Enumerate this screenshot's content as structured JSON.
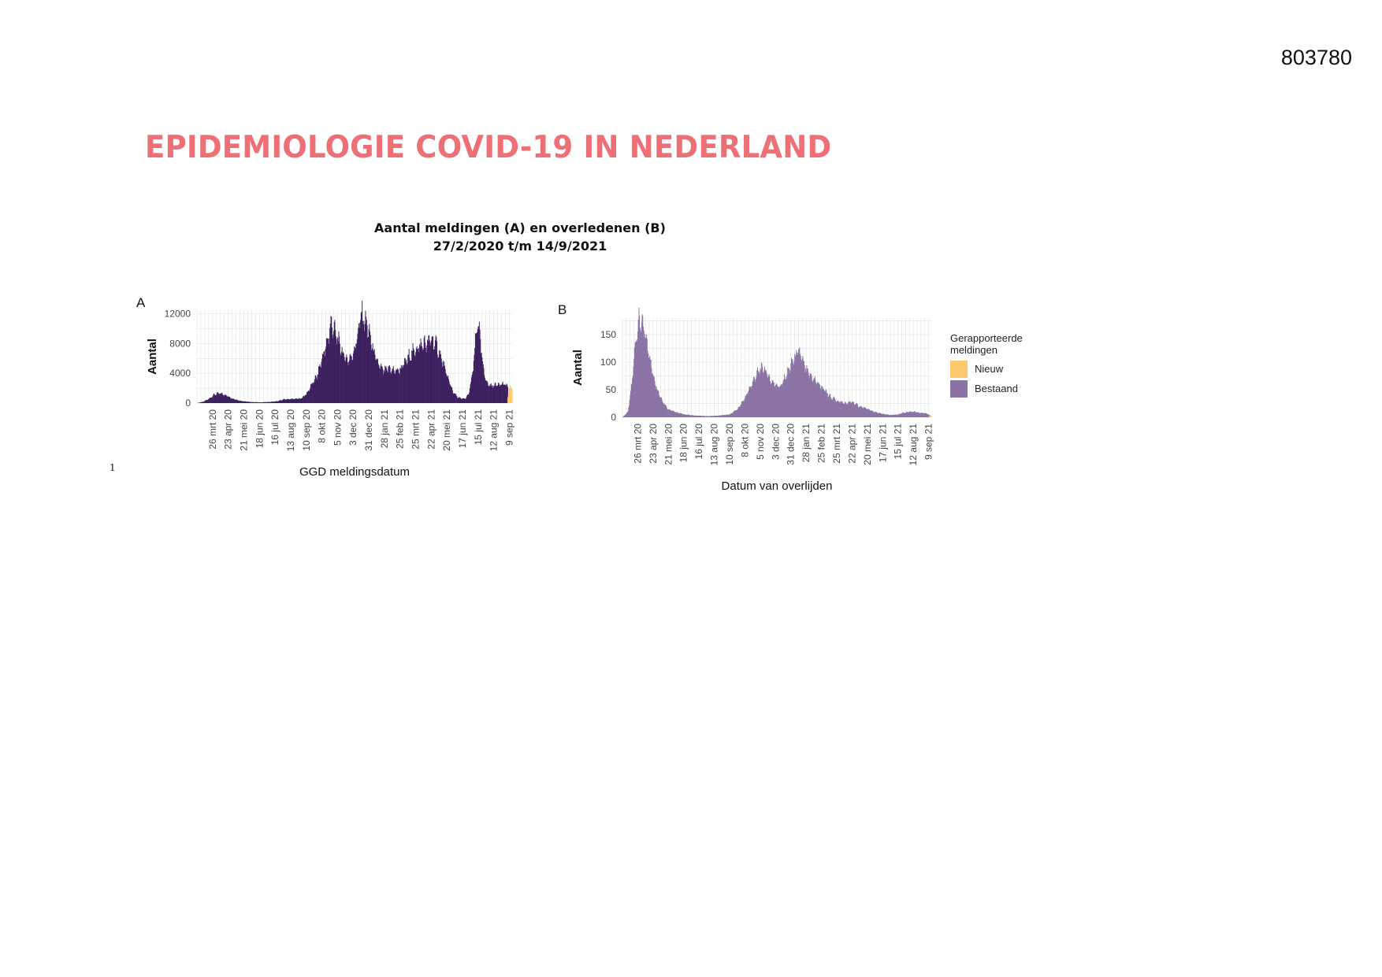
{
  "document": {
    "id": "803780",
    "title": "EPIDEMIOLOGIE COVID-19 IN NEDERLAND",
    "figure_title_line1": "Aantal meldingen (A) en overledenen (B)",
    "figure_title_line2": "27/2/2020 t/m 14/9/2021",
    "footnote": "1"
  },
  "colors": {
    "bestaand_a": "#3b1f5e",
    "bestaand_b": "#8a72a4",
    "nieuw": "#fcc96e",
    "grid": "#e6e6e6",
    "title": "#ee7077"
  },
  "chart_data": [
    {
      "panel": "A",
      "type": "area",
      "xlabel": "GGD meldingsdatum",
      "ylabel": "Aantal",
      "ylim": [
        0,
        12500
      ],
      "yticks": [
        0,
        4000,
        8000,
        12000
      ],
      "grid": true,
      "x_range": [
        "2020-02-27",
        "2021-09-14"
      ],
      "xtick_labels": [
        "26 mrt 20",
        "23 apr 20",
        "21 mei 20",
        "18 jun 20",
        "16 jul 20",
        "13 aug 20",
        "10 sep 20",
        "8 okt 20",
        "5 nov 20",
        "3 dec 20",
        "31 dec 20",
        "28 jan 21",
        "25 feb 21",
        "25 mrt 21",
        "22 apr 21",
        "20 mei 21",
        "17 jun 21",
        "15 jul 21",
        "12 aug 21",
        "9 sep 21"
      ],
      "xtick_dates": [
        "2020-03-26",
        "2020-04-23",
        "2020-05-21",
        "2020-06-18",
        "2020-07-16",
        "2020-08-13",
        "2020-09-10",
        "2020-10-08",
        "2020-11-05",
        "2020-12-03",
        "2020-12-31",
        "2021-01-28",
        "2021-02-25",
        "2021-03-25",
        "2021-04-22",
        "2021-05-20",
        "2021-06-17",
        "2021-07-15",
        "2021-08-12",
        "2021-09-09"
      ],
      "series": [
        {
          "name": "Bestaand",
          "x": [
            "2020-02-27",
            "2020-03-10",
            "2020-03-20",
            "2020-03-28",
            "2020-04-05",
            "2020-04-12",
            "2020-04-20",
            "2020-05-01",
            "2020-05-15",
            "2020-06-01",
            "2020-06-20",
            "2020-07-05",
            "2020-07-20",
            "2020-08-01",
            "2020-08-15",
            "2020-08-31",
            "2020-09-10",
            "2020-09-20",
            "2020-09-30",
            "2020-10-08",
            "2020-10-15",
            "2020-10-20",
            "2020-10-25",
            "2020-10-31",
            "2020-11-08",
            "2020-11-15",
            "2020-11-22",
            "2020-11-30",
            "2020-12-05",
            "2020-12-12",
            "2020-12-17",
            "2020-12-22",
            "2020-12-28",
            "2021-01-05",
            "2021-01-12",
            "2021-01-20",
            "2021-01-28",
            "2021-02-05",
            "2021-02-15",
            "2021-02-25",
            "2021-03-05",
            "2021-03-15",
            "2021-03-25",
            "2021-04-05",
            "2021-04-15",
            "2021-04-22",
            "2021-05-01",
            "2021-05-10",
            "2021-05-20",
            "2021-05-31",
            "2021-06-08",
            "2021-06-15",
            "2021-06-22",
            "2021-06-28",
            "2021-07-05",
            "2021-07-10",
            "2021-07-14",
            "2021-07-18",
            "2021-07-24",
            "2021-08-01",
            "2021-08-10",
            "2021-08-20",
            "2021-08-31",
            "2021-09-06"
          ],
          "values": [
            0,
            200,
            600,
            1100,
            1300,
            1250,
            1000,
            600,
            300,
            150,
            100,
            150,
            250,
            500,
            550,
            600,
            1200,
            2500,
            3800,
            6000,
            7500,
            9200,
            10800,
            9600,
            8000,
            6500,
            5800,
            6200,
            7200,
            9500,
            12000,
            11300,
            10500,
            8000,
            6000,
            4800,
            4300,
            4700,
            4300,
            4500,
            5300,
            6500,
            7200,
            7800,
            8000,
            8600,
            7800,
            6000,
            3700,
            1500,
            800,
            600,
            600,
            1200,
            4000,
            8000,
            11300,
            9000,
            4500,
            2500,
            2300,
            2600,
            2500,
            2300
          ]
        },
        {
          "name": "Nieuw",
          "x": [
            "2021-09-06",
            "2021-09-10",
            "2021-09-14"
          ],
          "values": [
            800,
            2400,
            1800
          ]
        }
      ]
    },
    {
      "panel": "B",
      "type": "bar",
      "xlabel": "Datum van overlijden",
      "ylabel": "Aantal",
      "ylim": [
        0,
        180
      ],
      "yticks": [
        0,
        50,
        100,
        150
      ],
      "grid": true,
      "x_range": [
        "2020-02-27",
        "2021-09-14"
      ],
      "xtick_labels": [
        "26 mrt 20",
        "23 apr 20",
        "21 mei 20",
        "18 jun 20",
        "16 jul 20",
        "13 aug 20",
        "10 sep 20",
        "8 okt 20",
        "5 nov 20",
        "3 dec 20",
        "31 dec 20",
        "28 jan 21",
        "25 feb 21",
        "25 mrt 21",
        "22 apr 21",
        "20 mei 21",
        "17 jun 21",
        "15 jul 21",
        "12 aug 21",
        "9 sep 21"
      ],
      "xtick_dates": [
        "2020-03-26",
        "2020-04-23",
        "2020-05-21",
        "2020-06-18",
        "2020-07-16",
        "2020-08-13",
        "2020-09-10",
        "2020-10-08",
        "2020-11-05",
        "2020-12-03",
        "2020-12-31",
        "2021-01-28",
        "2021-02-25",
        "2021-03-25",
        "2021-04-22",
        "2021-05-20",
        "2021-06-17",
        "2021-07-15",
        "2021-08-12",
        "2021-09-09"
      ],
      "series": [
        {
          "name": "Bestaand",
          "x": [
            "2020-02-27",
            "2020-03-08",
            "2020-03-15",
            "2020-03-22",
            "2020-03-28",
            "2020-04-02",
            "2020-04-08",
            "2020-04-15",
            "2020-04-22",
            "2020-05-01",
            "2020-05-10",
            "2020-05-20",
            "2020-06-01",
            "2020-06-20",
            "2020-07-10",
            "2020-08-01",
            "2020-08-20",
            "2020-09-10",
            "2020-09-25",
            "2020-10-08",
            "2020-10-18",
            "2020-10-28",
            "2020-11-03",
            "2020-11-10",
            "2020-11-17",
            "2020-11-25",
            "2020-12-03",
            "2020-12-12",
            "2020-12-22",
            "2020-12-31",
            "2021-01-08",
            "2021-01-15",
            "2021-01-22",
            "2021-01-28",
            "2021-02-05",
            "2021-02-15",
            "2021-02-25",
            "2021-03-10",
            "2021-03-25",
            "2021-04-10",
            "2021-04-22",
            "2021-05-05",
            "2021-05-20",
            "2021-06-01",
            "2021-06-17",
            "2021-07-01",
            "2021-07-15",
            "2021-07-25",
            "2021-08-05",
            "2021-08-15",
            "2021-08-25",
            "2021-09-05",
            "2021-09-12"
          ],
          "values": [
            0,
            10,
            60,
            140,
            175,
            170,
            150,
            120,
            80,
            50,
            30,
            15,
            10,
            5,
            3,
            2,
            3,
            5,
            15,
            35,
            55,
            75,
            85,
            90,
            80,
            65,
            60,
            55,
            75,
            95,
            110,
            120,
            100,
            85,
            75,
            65,
            55,
            40,
            30,
            25,
            28,
            20,
            15,
            10,
            6,
            4,
            5,
            8,
            10,
            10,
            8,
            7,
            3
          ]
        },
        {
          "name": "Nieuw",
          "x": [
            "2021-09-10",
            "2021-09-14"
          ],
          "values": [
            2,
            3
          ]
        }
      ],
      "legend": {
        "title_line1": "Gerapporteerde",
        "title_line2": "meldingen",
        "items": [
          "Nieuw",
          "Bestaand"
        ],
        "placement": "right"
      }
    }
  ]
}
